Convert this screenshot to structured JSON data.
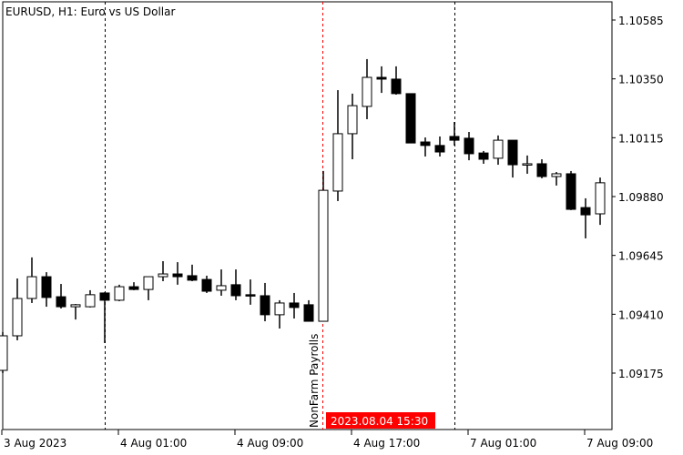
{
  "header": {
    "title": "EURUSD, H1:  Euro vs US Dollar"
  },
  "colors": {
    "background": "#ffffff",
    "bull_body": "#ffffff",
    "bear_body": "#000000",
    "candle_outline": "#000000",
    "event_line": "#ff0000",
    "day_separator": "#000000",
    "crosshair_label_bg": "#ff0000"
  },
  "chart_data": {
    "type": "candlestick",
    "title": "EURUSD, H1:  Euro vs US Dollar",
    "ylim": [
      1.09115,
      1.10665
    ],
    "y_ticks": [
      "1.10585",
      "1.10350",
      "1.10115",
      "1.09880",
      "1.09645",
      "1.09410",
      "1.09175"
    ],
    "x_ticks": [
      {
        "bar": 0,
        "label": "3 Aug 2023"
      },
      {
        "bar": 8,
        "label": "4 Aug 01:00"
      },
      {
        "bar": 16,
        "label": "4 Aug 09:00"
      },
      {
        "bar": 24,
        "label": "4 Aug 17:00"
      },
      {
        "bar": 32,
        "label": "7 Aug 01:00"
      },
      {
        "bar": 40,
        "label": "7 Aug 09:00"
      }
    ],
    "day_separators": [
      7,
      31
    ],
    "event": {
      "bar": 22,
      "label": "NonFarm Payrolls",
      "time_label": "2023.08.04 15:30"
    },
    "grid": false,
    "ohlc": [
      [
        1.09186,
        1.09339,
        1.09175,
        1.09324
      ],
      [
        1.09324,
        1.09553,
        1.09306,
        1.09473
      ],
      [
        1.09473,
        1.09637,
        1.09455,
        1.0956
      ],
      [
        1.0956,
        1.09578,
        1.0944,
        1.09477
      ],
      [
        1.0948,
        1.09531,
        1.09433,
        1.0944
      ],
      [
        1.0944,
        1.09451,
        1.09389,
        1.09448
      ],
      [
        1.0944,
        1.09506,
        1.09437,
        1.09488
      ],
      [
        1.09495,
        1.09498,
        1.09295,
        1.09466
      ],
      [
        1.09466,
        1.09528,
        1.09462,
        1.0952
      ],
      [
        1.0952,
        1.09538,
        1.09506,
        1.09509
      ],
      [
        1.09509,
        1.0956,
        1.09466,
        1.0956
      ],
      [
        1.0956,
        1.09622,
        1.09542,
        1.09571
      ],
      [
        1.09571,
        1.09618,
        1.09528,
        1.0956
      ],
      [
        1.09564,
        1.09608,
        1.09542,
        1.09546
      ],
      [
        1.09549,
        1.09564,
        1.09495,
        1.09502
      ],
      [
        1.09506,
        1.09589,
        1.09484,
        1.09524
      ],
      [
        1.09528,
        1.09589,
        1.09466,
        1.09484
      ],
      [
        1.09488,
        1.09549,
        1.09448,
        1.09484
      ],
      [
        1.09484,
        1.09535,
        1.09382,
        1.09408
      ],
      [
        1.09408,
        1.09466,
        1.09353,
        1.09455
      ],
      [
        1.09455,
        1.09495,
        1.09393,
        1.09437
      ],
      [
        1.09448,
        1.09466,
        1.09382,
        1.09382
      ],
      [
        1.09382,
        1.09982,
        1.09382,
        1.09905
      ],
      [
        1.09902,
        1.10305,
        1.09862,
        1.10131
      ],
      [
        1.10131,
        1.10291,
        1.10029,
        1.10243
      ],
      [
        1.1024,
        1.10429,
        1.10189,
        1.10356
      ],
      [
        1.10356,
        1.104,
        1.10294,
        1.10349
      ],
      [
        1.10349,
        1.104,
        1.10287,
        1.10291
      ],
      [
        1.10291,
        1.10291,
        1.10094,
        1.10094
      ],
      [
        1.10098,
        1.10116,
        1.1004,
        1.10084
      ],
      [
        1.10084,
        1.1012,
        1.1004,
        1.10058
      ],
      [
        1.1012,
        1.10178,
        1.10084,
        1.10105
      ],
      [
        1.10113,
        1.10138,
        1.10025,
        1.10051
      ],
      [
        1.10054,
        1.10062,
        1.10011,
        1.10029
      ],
      [
        1.10033,
        1.10124,
        1.10007,
        1.10105
      ],
      [
        1.10105,
        1.10105,
        1.09956,
        1.10007
      ],
      [
        1.10011,
        1.10044,
        1.09971,
        1.10011
      ],
      [
        1.10011,
        1.10029,
        1.09953,
        1.0996
      ],
      [
        1.0996,
        1.09978,
        1.09924,
        1.09971
      ],
      [
        1.09971,
        1.09982,
        1.09826,
        1.09829
      ],
      [
        1.09836,
        1.09873,
        1.09713,
        1.09807
      ],
      [
        1.09811,
        1.09956,
        1.09767,
        1.09935
      ]
    ]
  }
}
